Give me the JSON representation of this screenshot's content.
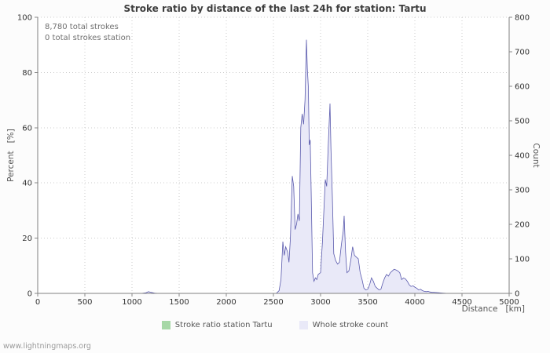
{
  "footer": {
    "watermark": "www.lightningmaps.org"
  },
  "chart_data": {
    "type": "area",
    "title": "Stroke ratio by distance of the last 24h for station: Tartu",
    "xlabel": "Distance   [km]",
    "ylabel_left": "Percent   [%]",
    "ylabel_right": "Count",
    "annotations": [
      "8,780 total strokes",
      "0 total strokes station"
    ],
    "xlim": [
      0,
      5000
    ],
    "ylim_left": [
      0,
      100
    ],
    "ylim_right": [
      0,
      800
    ],
    "x_ticks": [
      0,
      500,
      1000,
      1500,
      2000,
      2500,
      3000,
      3500,
      4000,
      4500,
      5000
    ],
    "left_ticks": [
      0,
      20,
      40,
      60,
      80,
      100
    ],
    "right_ticks": [
      0,
      100,
      200,
      300,
      400,
      500,
      600,
      700,
      800
    ],
    "grid": true,
    "legend_position": "bottom",
    "series": [
      {
        "name": "Stroke ratio station Tartu",
        "axis": "left",
        "color": "#a6d8a6",
        "points": [
          [
            0,
            0
          ],
          [
            5000,
            0
          ]
        ]
      },
      {
        "name": "Whole stroke count",
        "axis": "right",
        "color_fill": "#e9e9f8",
        "color_line": "#5a5aad",
        "points": [
          [
            0,
            0
          ],
          [
            1100,
            0
          ],
          [
            1150,
            2
          ],
          [
            1175,
            5
          ],
          [
            1200,
            3
          ],
          [
            1240,
            1
          ],
          [
            1280,
            0
          ],
          [
            2530,
            0
          ],
          [
            2560,
            8
          ],
          [
            2580,
            40
          ],
          [
            2600,
            150
          ],
          [
            2615,
            110
          ],
          [
            2630,
            135
          ],
          [
            2650,
            120
          ],
          [
            2665,
            90
          ],
          [
            2680,
            160
          ],
          [
            2700,
            340
          ],
          [
            2715,
            310
          ],
          [
            2730,
            185
          ],
          [
            2745,
            200
          ],
          [
            2760,
            230
          ],
          [
            2775,
            210
          ],
          [
            2790,
            480
          ],
          [
            2805,
            520
          ],
          [
            2820,
            490
          ],
          [
            2835,
            560
          ],
          [
            2850,
            735
          ],
          [
            2860,
            650
          ],
          [
            2870,
            600
          ],
          [
            2880,
            430
          ],
          [
            2890,
            445
          ],
          [
            2900,
            300
          ],
          [
            2915,
            60
          ],
          [
            2930,
            35
          ],
          [
            2945,
            45
          ],
          [
            2960,
            40
          ],
          [
            2975,
            55
          ],
          [
            3000,
            60
          ],
          [
            3020,
            150
          ],
          [
            3035,
            240
          ],
          [
            3050,
            330
          ],
          [
            3065,
            310
          ],
          [
            3080,
            420
          ],
          [
            3100,
            550
          ],
          [
            3110,
            420
          ],
          [
            3125,
            280
          ],
          [
            3140,
            115
          ],
          [
            3160,
            95
          ],
          [
            3180,
            85
          ],
          [
            3200,
            90
          ],
          [
            3220,
            140
          ],
          [
            3240,
            180
          ],
          [
            3250,
            225
          ],
          [
            3265,
            120
          ],
          [
            3280,
            60
          ],
          [
            3300,
            65
          ],
          [
            3320,
            95
          ],
          [
            3340,
            135
          ],
          [
            3360,
            110
          ],
          [
            3380,
            105
          ],
          [
            3400,
            100
          ],
          [
            3420,
            60
          ],
          [
            3440,
            40
          ],
          [
            3460,
            15
          ],
          [
            3480,
            10
          ],
          [
            3500,
            12
          ],
          [
            3520,
            25
          ],
          [
            3540,
            45
          ],
          [
            3560,
            35
          ],
          [
            3580,
            20
          ],
          [
            3600,
            15
          ],
          [
            3620,
            10
          ],
          [
            3640,
            12
          ],
          [
            3660,
            30
          ],
          [
            3680,
            45
          ],
          [
            3700,
            55
          ],
          [
            3720,
            50
          ],
          [
            3740,
            60
          ],
          [
            3760,
            65
          ],
          [
            3780,
            70
          ],
          [
            3800,
            68
          ],
          [
            3820,
            65
          ],
          [
            3840,
            60
          ],
          [
            3860,
            40
          ],
          [
            3880,
            45
          ],
          [
            3900,
            42
          ],
          [
            3920,
            35
          ],
          [
            3940,
            25
          ],
          [
            3960,
            20
          ],
          [
            3980,
            22
          ],
          [
            4000,
            18
          ],
          [
            4020,
            15
          ],
          [
            4040,
            10
          ],
          [
            4060,
            12
          ],
          [
            4080,
            8
          ],
          [
            4100,
            6
          ],
          [
            4120,
            5
          ],
          [
            4140,
            6
          ],
          [
            4160,
            4
          ],
          [
            4180,
            3
          ],
          [
            4200,
            3
          ],
          [
            4250,
            2
          ],
          [
            4300,
            1
          ],
          [
            4350,
            0
          ],
          [
            5000,
            0
          ]
        ]
      }
    ]
  }
}
